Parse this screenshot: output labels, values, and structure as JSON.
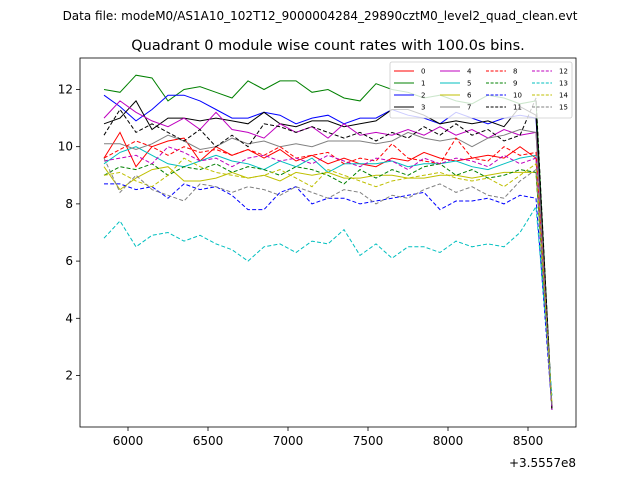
{
  "suptitle": "Data file: modeM0/AS1A10_102T12_9000004284_29890cztM0_level2_quad_clean.evt",
  "chart_data": {
    "type": "line",
    "title": "Quadrant 0 module wise count rates with 100.0s bins.",
    "xlabel": "",
    "ylabel": "",
    "x_offset_label": "+3.5557e8",
    "xlim": [
      5700,
      8800
    ],
    "ylim": [
      0.2,
      13.1
    ],
    "xticks": [
      6000,
      6500,
      7000,
      7500,
      8000,
      8500
    ],
    "yticks": [
      2,
      4,
      6,
      8,
      10,
      12
    ],
    "legend_position": "top-right",
    "legend_columns": 4,
    "x": [
      5850,
      5950,
      6050,
      6150,
      6250,
      6350,
      6450,
      6550,
      6650,
      6750,
      6850,
      6950,
      7050,
      7150,
      7250,
      7350,
      7450,
      7550,
      7650,
      7750,
      7850,
      7950,
      8050,
      8150,
      8250,
      8350,
      8450,
      8550,
      8650
    ],
    "series": [
      {
        "name": "0",
        "color": "#ff0000",
        "dash": "solid",
        "values": [
          9.6,
          10.5,
          9.3,
          10.0,
          10.2,
          10.3,
          9.5,
          10.0,
          9.7,
          9.9,
          9.6,
          9.9,
          9.5,
          9.7,
          9.4,
          9.6,
          9.4,
          9.3,
          9.6,
          9.5,
          9.8,
          9.6,
          9.5,
          9.6,
          9.7,
          9.6,
          10.0,
          9.6,
          0.8
        ]
      },
      {
        "name": "1",
        "color": "#008000",
        "dash": "solid",
        "values": [
          12.0,
          11.9,
          12.5,
          12.4,
          11.6,
          12.0,
          12.1,
          11.9,
          11.7,
          12.3,
          12.0,
          12.3,
          12.3,
          11.9,
          12.0,
          11.7,
          11.6,
          12.2,
          12.0,
          11.9,
          11.7,
          11.8,
          11.6,
          11.5,
          11.8,
          11.7,
          11.5,
          11.6,
          0.8
        ]
      },
      {
        "name": "2",
        "color": "#0000ff",
        "dash": "solid",
        "values": [
          11.8,
          11.4,
          10.9,
          11.3,
          11.8,
          11.8,
          11.6,
          11.3,
          11.0,
          11.0,
          11.2,
          11.1,
          10.8,
          11.0,
          11.1,
          10.8,
          11.0,
          11.0,
          11.3,
          11.1,
          11.0,
          10.8,
          11.2,
          11.0,
          10.8,
          11.0,
          11.1,
          11.0,
          0.8
        ]
      },
      {
        "name": "3",
        "color": "#000000",
        "dash": "solid",
        "values": [
          10.8,
          11.0,
          11.6,
          10.6,
          11.0,
          11.0,
          10.9,
          11.0,
          10.9,
          10.8,
          11.2,
          10.8,
          10.7,
          10.9,
          10.9,
          10.7,
          10.8,
          10.9,
          11.3,
          11.3,
          11.1,
          10.8,
          10.9,
          10.8,
          10.9,
          10.7,
          11.4,
          11.1,
          0.8
        ]
      },
      {
        "name": "4",
        "color": "#bf00bf",
        "dash": "solid",
        "values": [
          11.0,
          11.6,
          11.2,
          10.9,
          10.7,
          11.0,
          10.6,
          11.2,
          10.6,
          10.5,
          10.3,
          10.8,
          10.5,
          10.7,
          10.3,
          10.8,
          10.4,
          10.5,
          10.4,
          10.6,
          10.4,
          10.7,
          10.4,
          10.6,
          10.3,
          10.6,
          10.4,
          10.5,
          0.8
        ]
      },
      {
        "name": "5",
        "color": "#00bfbf",
        "dash": "solid",
        "values": [
          9.4,
          9.8,
          10.0,
          9.7,
          9.4,
          9.3,
          9.5,
          9.7,
          9.5,
          9.4,
          9.2,
          9.5,
          9.3,
          9.6,
          9.1,
          9.4,
          9.4,
          9.4,
          9.5,
          9.3,
          9.4,
          9.4,
          9.5,
          9.3,
          9.2,
          9.4,
          9.6,
          9.7,
          0.9
        ]
      },
      {
        "name": "6",
        "color": "#bfbf00",
        "dash": "solid",
        "values": [
          9.3,
          8.5,
          8.9,
          9.2,
          9.3,
          8.8,
          8.8,
          8.9,
          9.1,
          8.9,
          9.0,
          8.8,
          9.1,
          9.0,
          9.1,
          8.9,
          8.9,
          9.0,
          9.0,
          8.9,
          8.9,
          9.0,
          9.0,
          8.9,
          9.0,
          9.1,
          9.1,
          9.1,
          0.9
        ]
      },
      {
        "name": "7",
        "color": "#808080",
        "dash": "solid",
        "values": [
          10.1,
          10.1,
          9.9,
          10.1,
          10.4,
          10.2,
          9.9,
          10.0,
          10.3,
          10.1,
          10.2,
          10.0,
          10.1,
          10.0,
          10.2,
          10.2,
          10.2,
          10.1,
          10.2,
          10.5,
          10.3,
          10.2,
          10.3,
          10.0,
          10.3,
          10.4,
          10.6,
          10.5,
          0.8
        ]
      },
      {
        "name": "8",
        "color": "#ff0000",
        "dash": "dashed",
        "values": [
          9.6,
          9.9,
          10.2,
          10.0,
          9.7,
          10.0,
          9.8,
          9.9,
          9.7,
          9.9,
          9.7,
          10.0,
          9.6,
          9.7,
          9.8,
          9.4,
          9.6,
          9.5,
          10.1,
          9.6,
          9.5,
          9.4,
          10.3,
          9.6,
          9.5,
          10.0,
          9.7,
          9.8,
          0.8
        ]
      },
      {
        "name": "9",
        "color": "#008000",
        "dash": "dashed",
        "values": [
          9.0,
          9.3,
          9.2,
          9.4,
          9.0,
          9.3,
          9.2,
          9.4,
          9.1,
          9.3,
          9.2,
          9.0,
          9.3,
          9.2,
          9.0,
          8.7,
          9.2,
          8.9,
          9.2,
          9.0,
          9.3,
          9.4,
          9.0,
          9.2,
          8.9,
          9.0,
          9.2,
          9.1,
          0.8
        ]
      },
      {
        "name": "10",
        "color": "#0000ff",
        "dash": "dashed",
        "values": [
          8.7,
          8.7,
          8.5,
          8.6,
          8.2,
          8.7,
          8.5,
          8.6,
          8.3,
          7.8,
          7.8,
          8.4,
          8.6,
          8.0,
          8.2,
          8.2,
          8.0,
          8.1,
          8.2,
          8.3,
          8.4,
          7.8,
          8.1,
          8.1,
          8.2,
          8.0,
          8.3,
          8.2,
          0.8
        ]
      },
      {
        "name": "11",
        "color": "#000000",
        "dash": "dashed",
        "values": [
          10.4,
          11.3,
          10.5,
          10.8,
          10.5,
          10.2,
          10.6,
          10.0,
          10.4,
          10.0,
          10.8,
          10.7,
          10.5,
          10.7,
          10.5,
          10.3,
          10.5,
          10.2,
          10.5,
          10.3,
          10.7,
          10.4,
          10.8,
          10.4,
          10.6,
          10.2,
          10.4,
          11.7,
          0.8
        ]
      },
      {
        "name": "12",
        "color": "#bf00bf",
        "dash": "dashed",
        "values": [
          9.5,
          9.6,
          9.7,
          9.4,
          10.0,
          9.8,
          9.5,
          9.6,
          9.3,
          9.6,
          9.7,
          9.5,
          9.6,
          9.4,
          9.7,
          9.5,
          9.3,
          9.6,
          9.5,
          9.2,
          9.6,
          9.4,
          9.6,
          9.5,
          9.3,
          9.7,
          9.4,
          9.6,
          0.8
        ]
      },
      {
        "name": "13",
        "color": "#00bfbf",
        "dash": "dashed",
        "values": [
          6.8,
          7.4,
          6.5,
          6.9,
          7.0,
          6.7,
          6.9,
          6.6,
          6.4,
          6.0,
          6.5,
          6.6,
          6.3,
          6.7,
          6.6,
          7.1,
          6.2,
          6.6,
          6.1,
          6.5,
          6.5,
          6.3,
          6.7,
          6.5,
          6.6,
          6.5,
          7.0,
          7.9,
          1.3
        ]
      },
      {
        "name": "14",
        "color": "#bfbf00",
        "dash": "dashed",
        "values": [
          9.0,
          9.1,
          8.8,
          8.6,
          9.0,
          9.6,
          9.3,
          9.1,
          9.0,
          8.9,
          9.0,
          9.2,
          8.9,
          8.6,
          9.2,
          9.0,
          8.8,
          8.6,
          8.8,
          8.9,
          9.0,
          9.1,
          8.9,
          8.8,
          8.9,
          8.6,
          9.0,
          9.4,
          1.0
        ]
      },
      {
        "name": "15",
        "color": "#808080",
        "dash": "dashed",
        "values": [
          9.6,
          8.4,
          9.0,
          8.5,
          8.3,
          8.1,
          8.7,
          8.6,
          8.4,
          8.6,
          8.5,
          8.3,
          8.6,
          8.4,
          8.2,
          8.5,
          8.4,
          8.0,
          8.3,
          8.2,
          8.5,
          8.7,
          8.4,
          8.6,
          8.3,
          8.2,
          8.8,
          9.2,
          0.9
        ]
      }
    ]
  }
}
